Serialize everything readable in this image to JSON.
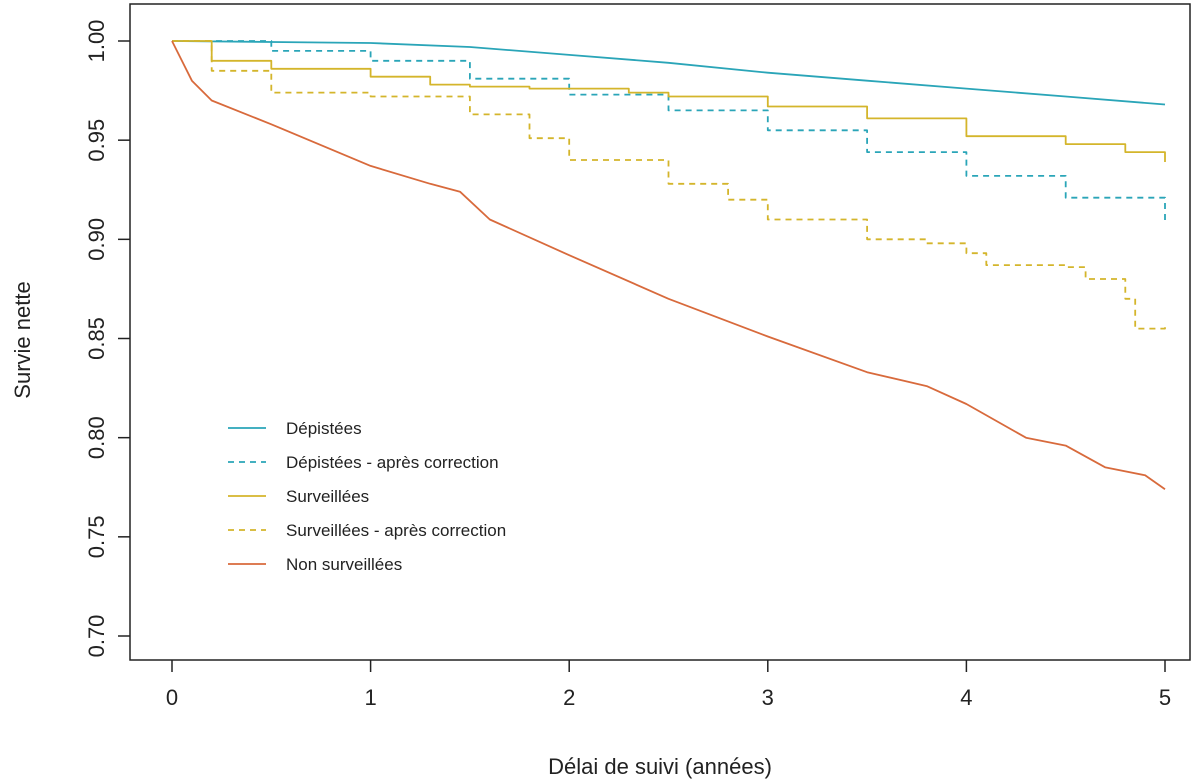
{
  "chart_data": {
    "type": "line",
    "title": "",
    "xlabel": "Délai de suivi (années)",
    "ylabel": "Survie nette",
    "xlim": [
      0,
      5
    ],
    "ylim": [
      0.7,
      1.0
    ],
    "x_ticks": [
      "0",
      "1",
      "2",
      "3",
      "4",
      "5"
    ],
    "y_ticks": [
      "0.70",
      "0.75",
      "0.80",
      "0.85",
      "0.90",
      "0.95",
      "1.00"
    ],
    "grid": false,
    "legend_position": "bottom-left",
    "series": [
      {
        "name": "Dépistées",
        "color": "#2aa5b8",
        "style": "solid",
        "step": false,
        "points": [
          [
            0,
            1.0
          ],
          [
            0.5,
            0.9995
          ],
          [
            1.0,
            0.999
          ],
          [
            1.5,
            0.997
          ],
          [
            2.0,
            0.993
          ],
          [
            2.5,
            0.989
          ],
          [
            3.0,
            0.984
          ],
          [
            3.5,
            0.98
          ],
          [
            4.0,
            0.976
          ],
          [
            4.5,
            0.972
          ],
          [
            5.0,
            0.968
          ]
        ]
      },
      {
        "name": "Dépistées - après correction",
        "color": "#2aa5b8",
        "style": "dashed",
        "step": true,
        "points": [
          [
            0,
            1.0
          ],
          [
            0.5,
            0.995
          ],
          [
            1.0,
            0.99
          ],
          [
            1.5,
            0.981
          ],
          [
            2.0,
            0.973
          ],
          [
            2.5,
            0.965
          ],
          [
            3.0,
            0.955
          ],
          [
            3.5,
            0.944
          ],
          [
            4.0,
            0.932
          ],
          [
            4.5,
            0.921
          ],
          [
            5.0,
            0.909
          ]
        ]
      },
      {
        "name": "Surveillées",
        "color": "#d4b52b",
        "style": "solid",
        "step": true,
        "points": [
          [
            0,
            1.0
          ],
          [
            0.2,
            0.99
          ],
          [
            0.5,
            0.986
          ],
          [
            1.0,
            0.982
          ],
          [
            1.3,
            0.978
          ],
          [
            1.5,
            0.977
          ],
          [
            1.8,
            0.976
          ],
          [
            2.0,
            0.976
          ],
          [
            2.3,
            0.974
          ],
          [
            2.5,
            0.972
          ],
          [
            3.0,
            0.967
          ],
          [
            3.5,
            0.961
          ],
          [
            4.0,
            0.952
          ],
          [
            4.5,
            0.948
          ],
          [
            4.8,
            0.944
          ],
          [
            5.0,
            0.939
          ]
        ]
      },
      {
        "name": "Surveillées - après correction",
        "color": "#d4b52b",
        "style": "dashed",
        "step": true,
        "points": [
          [
            0,
            1.0
          ],
          [
            0.2,
            0.985
          ],
          [
            0.5,
            0.974
          ],
          [
            1.0,
            0.972
          ],
          [
            1.5,
            0.963
          ],
          [
            1.8,
            0.951
          ],
          [
            2.0,
            0.94
          ],
          [
            2.5,
            0.928
          ],
          [
            2.8,
            0.92
          ],
          [
            3.0,
            0.91
          ],
          [
            3.5,
            0.9
          ],
          [
            3.8,
            0.898
          ],
          [
            4.0,
            0.893
          ],
          [
            4.1,
            0.887
          ],
          [
            4.5,
            0.886
          ],
          [
            4.6,
            0.88
          ],
          [
            4.8,
            0.87
          ],
          [
            4.85,
            0.855
          ],
          [
            5.0,
            0.856
          ]
        ]
      },
      {
        "name": "Non surveillées",
        "color": "#d86a3c",
        "style": "solid",
        "step": false,
        "points": [
          [
            0,
            1.0
          ],
          [
            0.1,
            0.98
          ],
          [
            0.2,
            0.97
          ],
          [
            0.5,
            0.958
          ],
          [
            1.0,
            0.937
          ],
          [
            1.3,
            0.928
          ],
          [
            1.45,
            0.924
          ],
          [
            1.6,
            0.91
          ],
          [
            2.0,
            0.892
          ],
          [
            2.5,
            0.87
          ],
          [
            3.0,
            0.851
          ],
          [
            3.5,
            0.833
          ],
          [
            3.8,
            0.826
          ],
          [
            4.0,
            0.817
          ],
          [
            4.3,
            0.8
          ],
          [
            4.5,
            0.796
          ],
          [
            4.7,
            0.785
          ],
          [
            4.9,
            0.781
          ],
          [
            5.0,
            0.774
          ]
        ]
      }
    ]
  }
}
